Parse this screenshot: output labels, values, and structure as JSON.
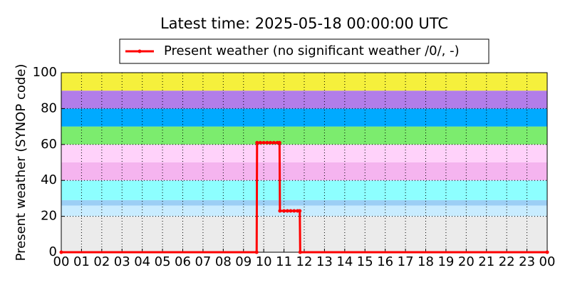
{
  "chart_data": {
    "type": "line",
    "title": "Latest time: 2025-05-18 00:00:00 UTC",
    "y_label": "Present weather (SYNOP code)",
    "x": [
      0,
      9.65,
      9.67,
      9.83,
      10.0,
      10.17,
      10.33,
      10.5,
      10.67,
      10.78,
      10.8,
      11.0,
      11.17,
      11.33,
      11.5,
      11.67,
      11.78,
      11.8,
      24
    ],
    "series": [
      {
        "name": "Present weather (no significant weather /0/, -)",
        "color": "#ff0000",
        "values": [
          0,
          0,
          61,
          61,
          61,
          61,
          61,
          61,
          61,
          61,
          23,
          23,
          23,
          23,
          23,
          23,
          23,
          0,
          0
        ]
      }
    ],
    "xlim": [
      0,
      24
    ],
    "xticks": [
      {
        "value": 0,
        "label": "00"
      },
      {
        "value": 1,
        "label": "01"
      },
      {
        "value": 2,
        "label": "02"
      },
      {
        "value": 3,
        "label": "03"
      },
      {
        "value": 4,
        "label": "04"
      },
      {
        "value": 5,
        "label": "05"
      },
      {
        "value": 6,
        "label": "06"
      },
      {
        "value": 7,
        "label": "07"
      },
      {
        "value": 8,
        "label": "08"
      },
      {
        "value": 9,
        "label": "09"
      },
      {
        "value": 10,
        "label": "10"
      },
      {
        "value": 11,
        "label": "11"
      },
      {
        "value": 12,
        "label": "12"
      },
      {
        "value": 13,
        "label": "13"
      },
      {
        "value": 14,
        "label": "14"
      },
      {
        "value": 15,
        "label": "15"
      },
      {
        "value": 16,
        "label": "16"
      },
      {
        "value": 17,
        "label": "17"
      },
      {
        "value": 18,
        "label": "18"
      },
      {
        "value": 19,
        "label": "19"
      },
      {
        "value": 20,
        "label": "20"
      },
      {
        "value": 21,
        "label": "21"
      },
      {
        "value": 22,
        "label": "22"
      },
      {
        "value": 23,
        "label": "23"
      },
      {
        "value": 24,
        "label": "00"
      }
    ],
    "ylim": [
      0,
      100
    ],
    "yticks": [
      0,
      20,
      40,
      60,
      80,
      100
    ],
    "grid": true,
    "legend": "top",
    "bands": [
      {
        "from": 0,
        "to": 20,
        "color": "#ebebeb"
      },
      {
        "from": 20,
        "to": 26,
        "color": "#c8ecff"
      },
      {
        "from": 26,
        "to": 29,
        "color": "#9ccff5"
      },
      {
        "from": 29,
        "to": 40,
        "color": "#8dffff"
      },
      {
        "from": 40,
        "to": 50,
        "color": "#f5b4ef"
      },
      {
        "from": 50,
        "to": 60,
        "color": "#ffd2fa"
      },
      {
        "from": 60,
        "to": 70,
        "color": "#7cec6e"
      },
      {
        "from": 70,
        "to": 80,
        "color": "#00aaff"
      },
      {
        "from": 80,
        "to": 90,
        "color": "#b27de9"
      },
      {
        "from": 90,
        "to": 100,
        "color": "#f5f03c"
      }
    ]
  }
}
